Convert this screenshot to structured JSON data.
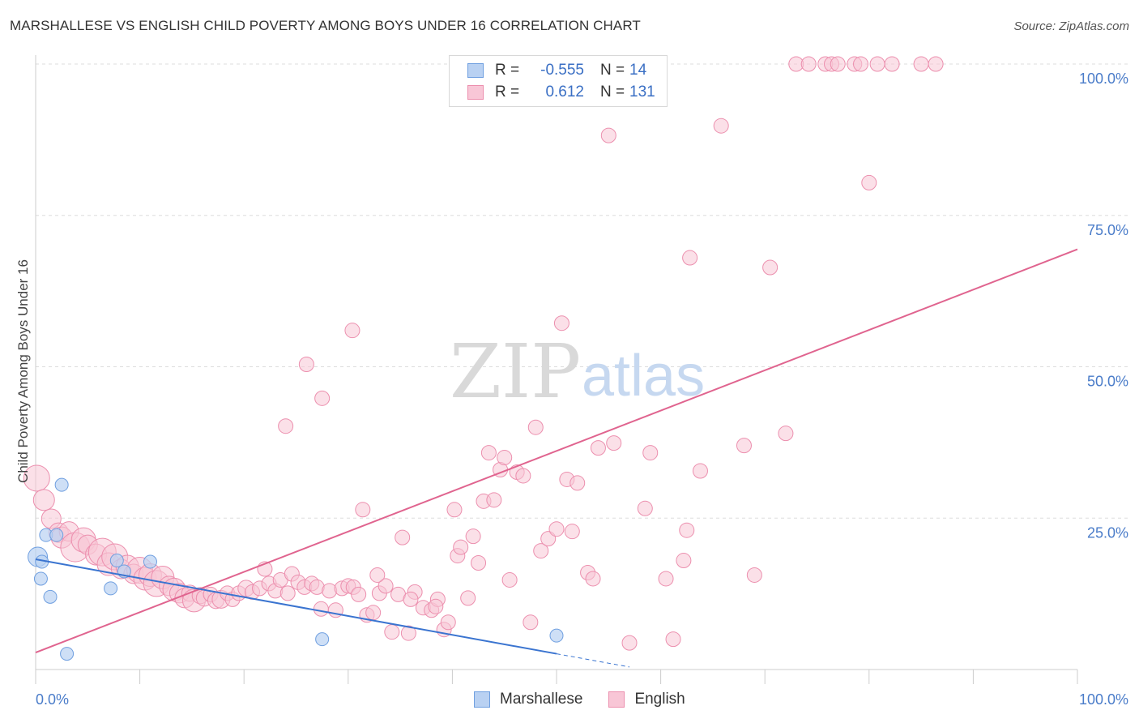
{
  "title": "MARSHALLESE VS ENGLISH CHILD POVERTY AMONG BOYS UNDER 16 CORRELATION CHART",
  "source": "Source: ZipAtlas.com",
  "watermark": {
    "zip": "ZIP",
    "atlas": "atlas"
  },
  "legend": {
    "r_label": "R =",
    "n_label": "N =",
    "rows": [
      {
        "name": "Marshallese",
        "r": "-0.555",
        "n": "14",
        "color": "#a9c6ef",
        "border": "#6f9fe0"
      },
      {
        "name": "English",
        "r": "0.612",
        "n": "131",
        "color": "#f6bfd1",
        "border": "#ee8fb0"
      }
    ]
  },
  "colors": {
    "blue_fill": "#b9d1f2",
    "blue_stroke": "#6f9fe0",
    "blue_line": "#3a74d0",
    "pink_fill": "#f8c6d6",
    "pink_stroke": "#ec8fae",
    "pink_line": "#e0648f",
    "axis_text": "#4a7cc9",
    "grid": "#dddddd"
  },
  "chart_data": {
    "type": "scatter",
    "title": "MARSHALLESE VS ENGLISH CHILD POVERTY AMONG BOYS UNDER 16 CORRELATION CHART",
    "xlabel": "",
    "ylabel": "Child Poverty Among Boys Under 16",
    "xlim": [
      0,
      100
    ],
    "ylim": [
      0,
      100
    ],
    "x_tick_labels": [
      "0.0%",
      "100.0%"
    ],
    "y_tick_values": [
      25,
      50,
      75,
      100
    ],
    "y_tick_labels": [
      "25.0%",
      "50.0%",
      "75.0%",
      "100.0%"
    ],
    "series": [
      {
        "name": "Marshallese",
        "trend": {
          "x0": 0,
          "y0": 18.2,
          "x1": 50,
          "y1": 2.6,
          "dash_to_x": 57
        },
        "points": [
          [
            0.2,
            18.6,
            12
          ],
          [
            0.5,
            15.0,
            8
          ],
          [
            0.6,
            17.8,
            8
          ],
          [
            1.0,
            22.2,
            8
          ],
          [
            1.4,
            12.0,
            8
          ],
          [
            2.0,
            22.2,
            8
          ],
          [
            2.5,
            30.5,
            8
          ],
          [
            3.0,
            2.6,
            8
          ],
          [
            7.2,
            13.4,
            8
          ],
          [
            7.8,
            18.0,
            8
          ],
          [
            8.5,
            16.2,
            8
          ],
          [
            11.0,
            17.8,
            8
          ],
          [
            27.5,
            5.0,
            8
          ],
          [
            50.0,
            5.6,
            8
          ]
        ]
      },
      {
        "name": "English",
        "trend": {
          "x0": 0,
          "y0": 2.8,
          "x1": 100,
          "y1": 69.4
        },
        "points": [
          [
            0.1,
            31.6,
            16
          ],
          [
            0.8,
            28.0,
            13
          ],
          [
            1.5,
            24.9,
            12
          ],
          [
            2.2,
            22.6,
            12
          ],
          [
            2.5,
            21.8,
            13
          ],
          [
            3.2,
            22.8,
            12
          ],
          [
            3.8,
            20.2,
            18
          ],
          [
            4.6,
            21.4,
            15
          ],
          [
            5.0,
            20.6,
            12
          ],
          [
            5.8,
            19.0,
            13
          ],
          [
            6.4,
            19.4,
            17
          ],
          [
            7.0,
            17.4,
            14
          ],
          [
            7.6,
            18.6,
            16
          ],
          [
            8.2,
            16.6,
            12
          ],
          [
            8.8,
            17.0,
            14
          ],
          [
            9.4,
            15.8,
            12
          ],
          [
            10.0,
            16.4,
            16
          ],
          [
            10.5,
            15.0,
            14
          ],
          [
            11.0,
            15.6,
            14
          ],
          [
            11.6,
            14.2,
            16
          ],
          [
            12.2,
            15.2,
            14
          ],
          [
            12.8,
            13.8,
            12
          ],
          [
            13.3,
            13.2,
            14
          ],
          [
            13.8,
            12.6,
            12
          ],
          [
            14.3,
            11.8,
            12
          ],
          [
            14.8,
            12.6,
            10
          ],
          [
            15.2,
            11.4,
            14
          ],
          [
            15.8,
            12.2,
            10
          ],
          [
            16.2,
            11.8,
            10
          ],
          [
            16.8,
            12.4,
            9
          ],
          [
            17.3,
            11.4,
            10
          ],
          [
            17.8,
            11.6,
            11
          ],
          [
            18.4,
            12.6,
            9
          ],
          [
            18.9,
            11.6,
            9
          ],
          [
            19.5,
            12.6,
            9
          ],
          [
            20.2,
            13.4,
            10
          ],
          [
            20.8,
            12.8,
            9
          ],
          [
            21.5,
            13.4,
            9
          ],
          [
            22.0,
            16.6,
            9
          ],
          [
            22.4,
            14.2,
            9
          ],
          [
            23.0,
            13.0,
            9
          ],
          [
            23.5,
            14.8,
            9
          ],
          [
            24.2,
            12.6,
            9
          ],
          [
            24.6,
            15.8,
            9
          ],
          [
            25.2,
            14.4,
            9
          ],
          [
            25.8,
            13.6,
            9
          ],
          [
            26.5,
            14.2,
            9
          ],
          [
            27.0,
            13.6,
            9
          ],
          [
            27.4,
            10.0,
            9
          ],
          [
            28.2,
            13.0,
            9
          ],
          [
            28.8,
            9.8,
            9
          ],
          [
            29.4,
            13.4,
            9
          ],
          [
            30.0,
            13.8,
            9
          ],
          [
            30.5,
            13.6,
            9
          ],
          [
            31.0,
            12.4,
            9
          ],
          [
            31.8,
            9.0,
            9
          ],
          [
            32.4,
            9.4,
            9
          ],
          [
            33.0,
            12.6,
            9
          ],
          [
            33.6,
            13.8,
            9
          ],
          [
            34.2,
            6.2,
            9
          ],
          [
            34.8,
            12.4,
            9
          ],
          [
            35.2,
            21.8,
            9
          ],
          [
            35.8,
            6.0,
            9
          ],
          [
            36.4,
            12.8,
            9
          ],
          [
            37.2,
            10.2,
            9
          ],
          [
            38.0,
            9.8,
            9
          ],
          [
            38.6,
            11.6,
            9
          ],
          [
            39.2,
            6.6,
            9
          ],
          [
            39.6,
            7.8,
            9
          ],
          [
            40.2,
            26.4,
            9
          ],
          [
            40.5,
            18.8,
            9
          ],
          [
            40.8,
            20.2,
            9
          ],
          [
            41.5,
            11.8,
            9
          ],
          [
            42.0,
            22.0,
            9
          ],
          [
            42.5,
            17.6,
            9
          ],
          [
            43.0,
            27.8,
            9
          ],
          [
            43.5,
            35.8,
            9
          ],
          [
            44.0,
            28.0,
            9
          ],
          [
            44.6,
            33.0,
            9
          ],
          [
            45.0,
            35.0,
            9
          ],
          [
            45.5,
            14.8,
            9
          ],
          [
            46.2,
            32.6,
            9
          ],
          [
            46.8,
            32.0,
            9
          ],
          [
            47.5,
            7.8,
            9
          ],
          [
            48.0,
            40.0,
            9
          ],
          [
            48.5,
            19.6,
            9
          ],
          [
            49.2,
            21.6,
            9
          ],
          [
            50.0,
            23.2,
            9
          ],
          [
            50.5,
            57.2,
            9
          ],
          [
            51.0,
            31.4,
            9
          ],
          [
            51.5,
            22.8,
            9
          ],
          [
            52.0,
            30.8,
            9
          ],
          [
            53.0,
            16.0,
            9
          ],
          [
            53.5,
            15.0,
            9
          ],
          [
            54.0,
            36.6,
            9
          ],
          [
            55.5,
            37.4,
            9
          ],
          [
            57.0,
            4.4,
            9
          ],
          [
            58.5,
            26.6,
            9
          ],
          [
            59.0,
            35.8,
            9
          ],
          [
            60.5,
            15.0,
            9
          ],
          [
            61.2,
            5.0,
            9
          ],
          [
            62.2,
            18.0,
            9
          ],
          [
            62.5,
            23.0,
            9
          ],
          [
            62.8,
            68.0,
            9
          ],
          [
            63.8,
            32.8,
            9
          ],
          [
            65.8,
            89.8,
            9
          ],
          [
            68.0,
            37.0,
            9
          ],
          [
            70.5,
            66.4,
            9
          ],
          [
            72.0,
            39.0,
            9
          ],
          [
            73.0,
            100.0,
            9
          ],
          [
            74.2,
            100.0,
            9
          ],
          [
            75.8,
            100.0,
            9
          ],
          [
            76.4,
            100.0,
            9
          ],
          [
            77.0,
            100.0,
            9
          ],
          [
            78.6,
            100.0,
            9
          ],
          [
            79.2,
            100.0,
            9
          ],
          [
            80.0,
            80.4,
            9
          ],
          [
            80.8,
            100.0,
            9
          ],
          [
            82.2,
            100.0,
            9
          ],
          [
            85.0,
            100.0,
            9
          ],
          [
            86.4,
            100.0,
            9
          ],
          [
            55.0,
            88.2,
            9
          ],
          [
            24.0,
            40.2,
            9
          ],
          [
            26.0,
            50.4,
            9
          ],
          [
            27.5,
            44.8,
            9
          ],
          [
            32.8,
            15.6,
            9
          ],
          [
            31.4,
            26.4,
            9
          ],
          [
            30.4,
            56.0,
            9
          ],
          [
            69.0,
            15.6,
            9
          ],
          [
            36.0,
            11.6,
            9
          ],
          [
            38.4,
            10.4,
            9
          ]
        ]
      }
    ]
  }
}
